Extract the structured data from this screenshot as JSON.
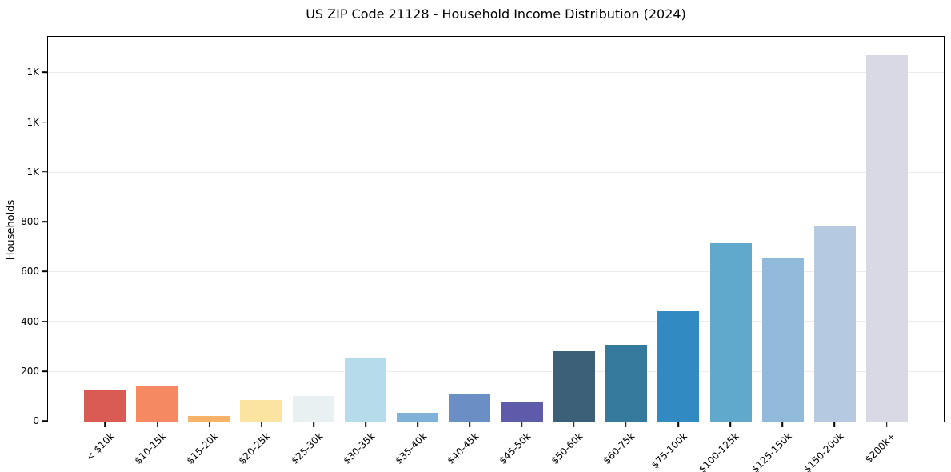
{
  "chart_data": {
    "type": "bar",
    "title": "US ZIP Code 21128 - Household Income Distribution (2024)",
    "xlabel": "",
    "ylabel": "Households",
    "categories": [
      "< $10k",
      "$10-15k",
      "$15-20k",
      "$20-25k",
      "$25-30k",
      "$30-35k",
      "$35-40k",
      "$40-45k",
      "$45-50k",
      "$50-60k",
      "$60-75k",
      "$75-100k",
      "$100-125k",
      "$125-150k",
      "$150-200k",
      "$200k+"
    ],
    "values": [
      125,
      140,
      24,
      86,
      103,
      256,
      35,
      110,
      77,
      283,
      308,
      442,
      715,
      655,
      780,
      1467
    ],
    "bar_colors": [
      "#d95b53",
      "#f58961",
      "#f9b368",
      "#fbe3a2",
      "#e8f0f2",
      "#b6dbeb",
      "#80b1d8",
      "#6b8ec4",
      "#5e5caa",
      "#3b6078",
      "#35799d",
      "#318ac2",
      "#60a8cc",
      "#91b9d9",
      "#b5c9e1",
      "#d8d9e5"
    ],
    "ylim": [
      0,
      1540
    ],
    "yticks": [
      {
        "value": 0,
        "label": "0"
      },
      {
        "value": 200,
        "label": "200"
      },
      {
        "value": 400,
        "label": "400"
      },
      {
        "value": 600,
        "label": "600"
      },
      {
        "value": 800,
        "label": "800"
      },
      {
        "value": 1000,
        "label": "1K"
      },
      {
        "value": 1200,
        "label": "1K"
      },
      {
        "value": 1400,
        "label": "1K"
      }
    ],
    "grid": "horizontal",
    "legend": "none",
    "colors": {
      "spine": "#000000",
      "grid": "#ececec",
      "text": "#000000",
      "background": "#ffffff"
    }
  }
}
